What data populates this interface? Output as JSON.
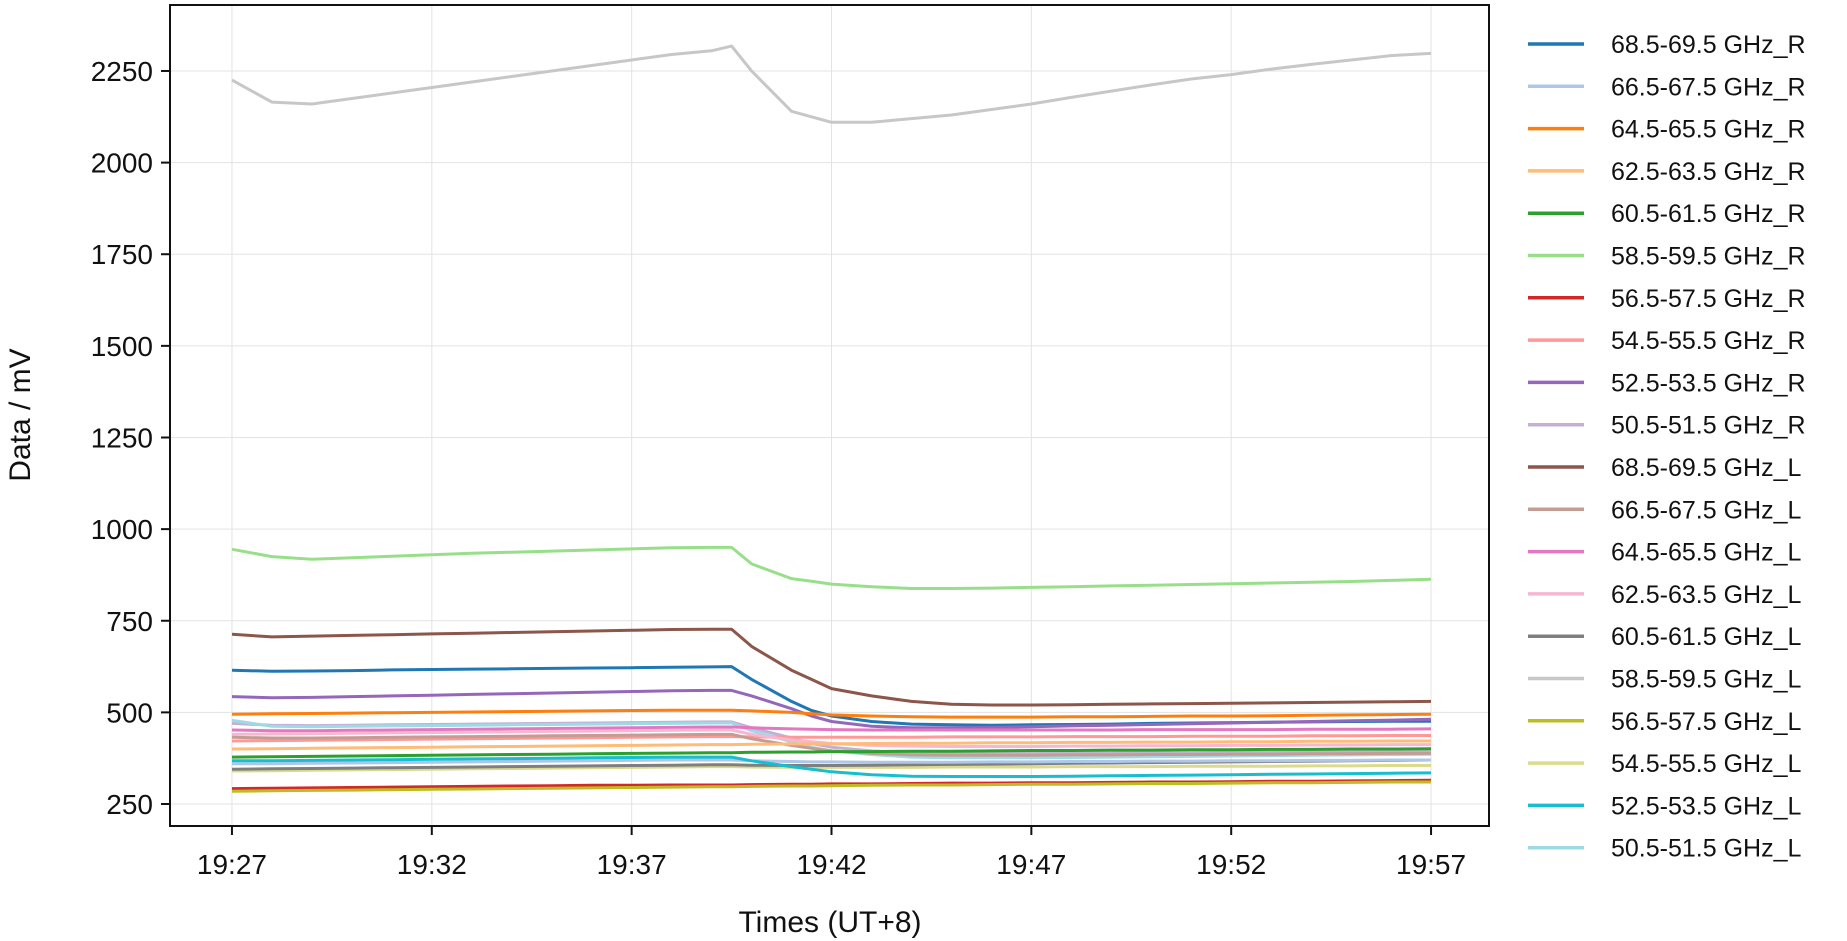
{
  "chart_data": {
    "type": "line",
    "xlabel": "Times (UT+8)",
    "ylabel": "Data / mV",
    "x_ticks": [
      "19:27",
      "19:32",
      "19:37",
      "19:42",
      "19:47",
      "19:52",
      "19:57"
    ],
    "x_tick_minutes": [
      0,
      5,
      10,
      15,
      20,
      25,
      30
    ],
    "xlim": [
      -1.55,
      31.45
    ],
    "y_ticks": [
      250,
      500,
      750,
      1000,
      1250,
      1500,
      1750,
      2000,
      2250
    ],
    "ylim": [
      190,
      2430
    ],
    "grid": true,
    "legend_position": "outside-right",
    "x": [
      0,
      1,
      2,
      3,
      4,
      5,
      6,
      7,
      8,
      9,
      10,
      11,
      12,
      12.5,
      13,
      14,
      14.5,
      15,
      16,
      17,
      18,
      19,
      20,
      21,
      22,
      23,
      24,
      25,
      26,
      27,
      28,
      29,
      30
    ],
    "series": [
      {
        "name": "68.5-69.5 GHz_R",
        "color": "#1f77b4",
        "values": [
          615,
          612,
          613,
          614,
          616,
          617,
          618,
          619,
          620,
          621,
          622,
          623,
          624,
          625,
          590,
          530,
          505,
          490,
          475,
          468,
          466,
          465,
          466,
          467,
          468,
          470,
          471,
          472,
          473,
          474,
          475,
          476,
          476
        ]
      },
      {
        "name": "66.5-67.5 GHz_R",
        "color": "#aec7e8",
        "values": [
          360,
          360,
          361,
          362,
          363,
          364,
          365,
          366,
          367,
          368,
          369,
          370,
          370,
          370,
          368,
          366,
          365,
          365,
          364,
          364,
          364,
          365,
          365,
          366,
          366,
          367,
          367,
          368,
          368,
          369,
          369,
          370,
          370
        ]
      },
      {
        "name": "64.5-65.5 GHz_R",
        "color": "#ff7f0e",
        "values": [
          495,
          496,
          497,
          498,
          499,
          500,
          501,
          502,
          503,
          504,
          505,
          506,
          506,
          506,
          504,
          500,
          496,
          493,
          490,
          488,
          487,
          487,
          487,
          488,
          488,
          489,
          490,
          490,
          491,
          492,
          493,
          494,
          495
        ]
      },
      {
        "name": "62.5-63.5 GHz_R",
        "color": "#ffbb78",
        "values": [
          400,
          401,
          402,
          403,
          404,
          405,
          406,
          407,
          408,
          409,
          410,
          411,
          412,
          412,
          413,
          414,
          414,
          414,
          415,
          416,
          416,
          417,
          417,
          418,
          418,
          419,
          419,
          420,
          420,
          421,
          421,
          422,
          422
        ]
      },
      {
        "name": "60.5-61.5 GHz_R",
        "color": "#2ca02c",
        "values": [
          378,
          379,
          380,
          381,
          382,
          383,
          384,
          385,
          386,
          387,
          388,
          389,
          390,
          390,
          391,
          392,
          392,
          393,
          393,
          394,
          394,
          395,
          396,
          396,
          397,
          397,
          398,
          398,
          399,
          399,
          400,
          400,
          401
        ]
      },
      {
        "name": "58.5-59.5 GHz_R",
        "color": "#98df8a",
        "values": [
          945,
          925,
          918,
          922,
          926,
          930,
          934,
          937,
          940,
          943,
          946,
          949,
          950,
          950,
          905,
          865,
          858,
          850,
          843,
          838,
          838,
          839,
          841,
          843,
          845,
          847,
          849,
          851,
          853,
          855,
          857,
          860,
          863
        ]
      },
      {
        "name": "56.5-57.5 GHz_R",
        "color": "#d62728",
        "values": [
          292,
          293,
          294,
          295,
          296,
          297,
          298,
          299,
          300,
          301,
          301,
          302,
          302,
          302,
          303,
          304,
          304,
          305,
          305,
          306,
          307,
          307,
          308,
          308,
          309,
          310,
          310,
          311,
          312,
          312,
          313,
          314,
          315
        ]
      },
      {
        "name": "54.5-55.5 GHz_R",
        "color": "#ff9896",
        "values": [
          422,
          423,
          424,
          425,
          426,
          427,
          428,
          429,
          430,
          431,
          432,
          433,
          434,
          434,
          433,
          432,
          432,
          432,
          432,
          432,
          433,
          433,
          433,
          434,
          434,
          434,
          435,
          435,
          435,
          436,
          436,
          437,
          437
        ]
      },
      {
        "name": "52.5-53.5 GHz_R",
        "color": "#9467bd",
        "values": [
          543,
          540,
          541,
          543,
          545,
          547,
          549,
          551,
          553,
          555,
          557,
          559,
          560,
          560,
          545,
          510,
          490,
          475,
          462,
          458,
          458,
          459,
          461,
          463,
          465,
          467,
          469,
          471,
          473,
          475,
          477,
          479,
          481
        ]
      },
      {
        "name": "50.5-51.5 GHz_R",
        "color": "#c5b0d5",
        "values": [
          470,
          465,
          464,
          465,
          466,
          467,
          468,
          469,
          470,
          471,
          472,
          473,
          474,
          474,
          458,
          430,
          415,
          405,
          395,
          390,
          388,
          388,
          388,
          389,
          389,
          390,
          390,
          391,
          391,
          392,
          392,
          393,
          393
        ]
      },
      {
        "name": "68.5-69.5 GHz_L",
        "color": "#8c564b",
        "values": [
          713,
          706,
          708,
          710,
          712,
          714,
          716,
          718,
          720,
          722,
          724,
          726,
          727,
          727,
          680,
          615,
          590,
          565,
          545,
          530,
          522,
          520,
          520,
          521,
          522,
          523,
          524,
          525,
          526,
          527,
          528,
          529,
          530
        ]
      },
      {
        "name": "66.5-67.5 GHz_L",
        "color": "#c49c94",
        "values": [
          432,
          430,
          430,
          431,
          432,
          433,
          434,
          435,
          436,
          437,
          438,
          439,
          440,
          440,
          428,
          410,
          402,
          395,
          388,
          384,
          383,
          383,
          383,
          384,
          384,
          385,
          385,
          386,
          386,
          387,
          387,
          388,
          388
        ]
      },
      {
        "name": "64.5-65.5 GHz_L",
        "color": "#e377c2",
        "values": [
          452,
          450,
          450,
          451,
          452,
          453,
          454,
          455,
          456,
          457,
          458,
          459,
          460,
          460,
          458,
          455,
          454,
          453,
          452,
          452,
          452,
          452,
          452,
          452,
          452,
          453,
          453,
          453,
          453,
          454,
          454,
          454,
          455
        ]
      },
      {
        "name": "62.5-63.5 GHz_L",
        "color": "#f7b6d2",
        "values": [
          440,
          441,
          442,
          443,
          444,
          445,
          446,
          447,
          448,
          449,
          450,
          451,
          452,
          452,
          440,
          425,
          420,
          415,
          410,
          408,
          407,
          407,
          407,
          408,
          408,
          409,
          409,
          410,
          410,
          411,
          411,
          412,
          412
        ]
      },
      {
        "name": "60.5-61.5 GHz_L",
        "color": "#7f7f7f",
        "values": [
          345,
          346,
          347,
          348,
          349,
          350,
          351,
          352,
          353,
          354,
          355,
          356,
          357,
          357,
          356,
          355,
          355,
          355,
          356,
          357,
          358,
          359,
          360,
          361,
          362,
          363,
          364,
          365,
          366,
          367,
          368,
          369,
          370
        ]
      },
      {
        "name": "58.5-59.5 GHz_L",
        "color": "#c7c7c7",
        "values": [
          2225,
          2165,
          2160,
          2175,
          2190,
          2205,
          2220,
          2235,
          2250,
          2265,
          2280,
          2295,
          2305,
          2318,
          2250,
          2140,
          2125,
          2110,
          2110,
          2120,
          2130,
          2145,
          2160,
          2178,
          2195,
          2212,
          2228,
          2240,
          2255,
          2268,
          2280,
          2292,
          2298
        ]
      },
      {
        "name": "56.5-57.5 GHz_L",
        "color": "#bcbd22",
        "values": [
          285,
          286,
          287,
          288,
          289,
          290,
          291,
          292,
          293,
          294,
          295,
          296,
          297,
          297,
          298,
          299,
          299,
          300,
          301,
          302,
          302,
          303,
          304,
          304,
          305,
          306,
          306,
          307,
          308,
          308,
          309,
          310,
          310
        ]
      },
      {
        "name": "54.5-55.5 GHz_L",
        "color": "#dbdb8d",
        "values": [
          340,
          341,
          342,
          343,
          344,
          345,
          346,
          347,
          348,
          349,
          350,
          351,
          352,
          352,
          351,
          350,
          350,
          350,
          350,
          350,
          351,
          351,
          351,
          352,
          352,
          352,
          353,
          353,
          353,
          354,
          354,
          355,
          355
        ]
      },
      {
        "name": "52.5-53.5 GHz_L",
        "color": "#17becf",
        "values": [
          368,
          368,
          369,
          370,
          371,
          372,
          373,
          374,
          375,
          376,
          377,
          378,
          378,
          378,
          368,
          352,
          345,
          338,
          330,
          326,
          325,
          325,
          325,
          326,
          327,
          328,
          329,
          330,
          331,
          332,
          333,
          334,
          335
        ]
      },
      {
        "name": "50.5-51.5 GHz_L",
        "color": "#9edae5",
        "values": [
          478,
          462,
          461,
          462,
          463,
          464,
          465,
          466,
          467,
          468,
          469,
          470,
          471,
          471,
          450,
          420,
          405,
          395,
          385,
          378,
          376,
          376,
          376,
          377,
          378,
          379,
          380,
          381,
          382,
          383,
          384,
          385,
          386
        ]
      }
    ]
  }
}
